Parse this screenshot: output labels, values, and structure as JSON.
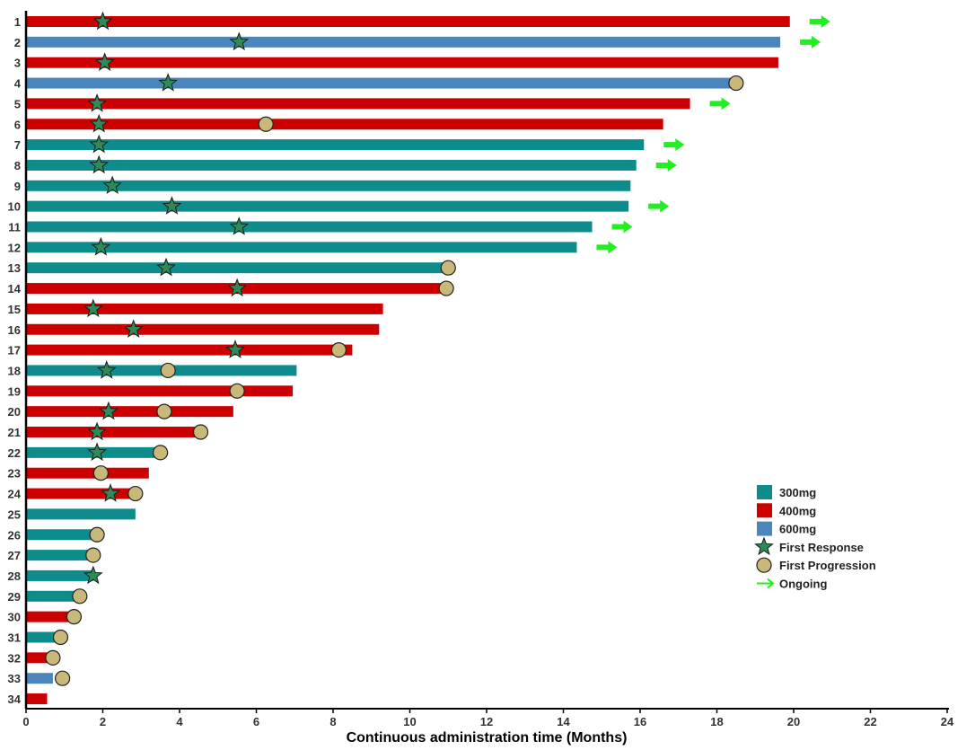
{
  "chart_data": {
    "type": "bar",
    "orientation": "horizontal",
    "title": "",
    "xlabel": "Continuous administration time (Months)",
    "ylabel": "",
    "xlim": [
      0,
      24
    ],
    "xticks": [
      0,
      2,
      4,
      6,
      8,
      10,
      12,
      14,
      16,
      18,
      20,
      22,
      24
    ],
    "grid": false,
    "legend_position": "right",
    "colors": {
      "300mg": "#0e8c8c",
      "400mg": "#cc0000",
      "600mg": "#4a86bb",
      "first_response": "#2e8b57",
      "first_progression": "#c8b87a",
      "ongoing": "#22ee22"
    },
    "legend": [
      {
        "key": "300mg",
        "label": "300mg",
        "symbol": "box"
      },
      {
        "key": "400mg",
        "label": "400mg",
        "symbol": "box"
      },
      {
        "key": "600mg",
        "label": "600mg",
        "symbol": "box"
      },
      {
        "key": "first_response",
        "label": "First Response",
        "symbol": "star"
      },
      {
        "key": "first_progression",
        "label": "First Progression",
        "symbol": "circle"
      },
      {
        "key": "ongoing",
        "label": "Ongoing",
        "symbol": "arrow"
      }
    ],
    "patients": [
      {
        "id": "1",
        "dose": "400mg",
        "duration": 19.9,
        "response": 2.0,
        "progression": null,
        "ongoing": true
      },
      {
        "id": "2",
        "dose": "600mg",
        "duration": 19.65,
        "response": 5.55,
        "progression": null,
        "ongoing": true
      },
      {
        "id": "3",
        "dose": "400mg",
        "duration": 19.6,
        "response": 2.05,
        "progression": null,
        "ongoing": false
      },
      {
        "id": "4",
        "dose": "600mg",
        "duration": 18.5,
        "response": 3.7,
        "progression": 18.5,
        "ongoing": false
      },
      {
        "id": "5",
        "dose": "400mg",
        "duration": 17.3,
        "response": 1.85,
        "progression": null,
        "ongoing": true
      },
      {
        "id": "6",
        "dose": "400mg",
        "duration": 16.6,
        "response": 1.9,
        "progression": 6.25,
        "ongoing": false
      },
      {
        "id": "7",
        "dose": "300mg",
        "duration": 16.1,
        "response": 1.9,
        "progression": null,
        "ongoing": true
      },
      {
        "id": "8",
        "dose": "300mg",
        "duration": 15.9,
        "response": 1.9,
        "progression": null,
        "ongoing": true
      },
      {
        "id": "9",
        "dose": "300mg",
        "duration": 15.75,
        "response": 2.25,
        "progression": null,
        "ongoing": false
      },
      {
        "id": "10",
        "dose": "300mg",
        "duration": 15.7,
        "response": 3.8,
        "progression": null,
        "ongoing": true
      },
      {
        "id": "11",
        "dose": "300mg",
        "duration": 14.75,
        "response": 5.55,
        "progression": null,
        "ongoing": true
      },
      {
        "id": "12",
        "dose": "300mg",
        "duration": 14.35,
        "response": 1.95,
        "progression": null,
        "ongoing": true
      },
      {
        "id": "13",
        "dose": "300mg",
        "duration": 11.0,
        "response": 3.65,
        "progression": 11.0,
        "ongoing": false
      },
      {
        "id": "14",
        "dose": "400mg",
        "duration": 10.95,
        "response": 5.5,
        "progression": 10.95,
        "ongoing": false
      },
      {
        "id": "15",
        "dose": "400mg",
        "duration": 9.3,
        "response": 1.75,
        "progression": null,
        "ongoing": false
      },
      {
        "id": "16",
        "dose": "400mg",
        "duration": 9.2,
        "response": 2.8,
        "progression": null,
        "ongoing": false
      },
      {
        "id": "17",
        "dose": "400mg",
        "duration": 8.5,
        "response": 5.45,
        "progression": 8.15,
        "ongoing": false
      },
      {
        "id": "18",
        "dose": "300mg",
        "duration": 7.05,
        "response": 2.1,
        "progression": 3.7,
        "ongoing": false
      },
      {
        "id": "19",
        "dose": "400mg",
        "duration": 6.95,
        "response": null,
        "progression": 5.5,
        "ongoing": false
      },
      {
        "id": "20",
        "dose": "400mg",
        "duration": 5.4,
        "response": 2.15,
        "progression": 3.6,
        "ongoing": false
      },
      {
        "id": "21",
        "dose": "400mg",
        "duration": 4.5,
        "response": 1.85,
        "progression": 4.55,
        "ongoing": false
      },
      {
        "id": "22",
        "dose": "300mg",
        "duration": 3.35,
        "response": 1.85,
        "progression": 3.5,
        "ongoing": false
      },
      {
        "id": "23",
        "dose": "400mg",
        "duration": 3.2,
        "response": null,
        "progression": 1.95,
        "ongoing": false
      },
      {
        "id": "24",
        "dose": "400mg",
        "duration": 2.75,
        "response": 2.2,
        "progression": 2.85,
        "ongoing": false
      },
      {
        "id": "25",
        "dose": "300mg",
        "duration": 2.85,
        "response": null,
        "progression": null,
        "ongoing": false
      },
      {
        "id": "26",
        "dose": "300mg",
        "duration": 1.8,
        "response": null,
        "progression": 1.85,
        "ongoing": false
      },
      {
        "id": "27",
        "dose": "300mg",
        "duration": 1.7,
        "response": null,
        "progression": 1.75,
        "ongoing": false
      },
      {
        "id": "28",
        "dose": "300mg",
        "duration": 1.75,
        "response": 1.75,
        "progression": null,
        "ongoing": false
      },
      {
        "id": "29",
        "dose": "300mg",
        "duration": 1.4,
        "response": null,
        "progression": 1.4,
        "ongoing": false
      },
      {
        "id": "30",
        "dose": "400mg",
        "duration": 1.2,
        "response": null,
        "progression": 1.25,
        "ongoing": false
      },
      {
        "id": "31",
        "dose": "300mg",
        "duration": 0.75,
        "response": null,
        "progression": 0.9,
        "ongoing": false
      },
      {
        "id": "32",
        "dose": "400mg",
        "duration": 0.55,
        "response": null,
        "progression": 0.7,
        "ongoing": false
      },
      {
        "id": "33",
        "dose": "600mg",
        "duration": 0.7,
        "response": null,
        "progression": 0.95,
        "ongoing": false
      },
      {
        "id": "34",
        "dose": "400mg",
        "duration": 0.55,
        "response": null,
        "progression": null,
        "ongoing": false
      }
    ]
  }
}
